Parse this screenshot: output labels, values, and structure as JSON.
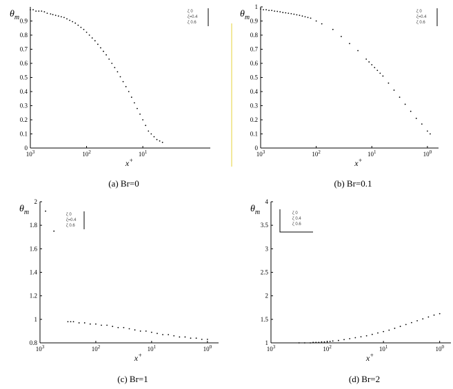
{
  "chart_data": [
    {
      "type": "scatter",
      "caption": "(a) Br=0",
      "ylabel_base": "θ",
      "ylabel_sub": "m",
      "xlabel_base": "x",
      "xlabel_sup": "+",
      "ylim": [
        0,
        1
      ],
      "yticks": [
        "0",
        "0.1",
        "0.2",
        "0.3",
        "0.4",
        "0.5",
        "0.6",
        "0.7",
        "0.8",
        "0.9"
      ],
      "xticks": [
        {
          "base": "10",
          "exp": "3"
        },
        {
          "base": "10",
          "exp": "2"
        },
        {
          "base": "10",
          "exp": "1"
        }
      ],
      "legend": [
        "ζ 0",
        "ζ=0.4",
        "ζ 0.6"
      ],
      "legend_pos": "top-right",
      "x": [
        0.0,
        0.05,
        0.1,
        0.15,
        0.2,
        0.25,
        0.3,
        0.36,
        0.4,
        0.45,
        0.5,
        0.55,
        0.6,
        0.65,
        0.7,
        0.75,
        0.8,
        0.85,
        0.9,
        0.95,
        1.0,
        1.05,
        1.1,
        1.15,
        1.2,
        1.25,
        1.3,
        1.35,
        1.4,
        1.45,
        1.5,
        1.55,
        1.6,
        1.65,
        1.7,
        1.75,
        1.8,
        1.85,
        1.9,
        1.95,
        2.0,
        2.05,
        2.1,
        2.15,
        2.2,
        2.25,
        2.3,
        2.35
      ],
      "y": [
        0.98,
        0.98,
        0.97,
        0.97,
        0.97,
        0.965,
        0.955,
        0.95,
        0.945,
        0.94,
        0.935,
        0.93,
        0.925,
        0.915,
        0.905,
        0.895,
        0.885,
        0.87,
        0.855,
        0.84,
        0.82,
        0.8,
        0.78,
        0.76,
        0.735,
        0.71,
        0.685,
        0.66,
        0.63,
        0.6,
        0.57,
        0.54,
        0.505,
        0.47,
        0.435,
        0.4,
        0.36,
        0.32,
        0.28,
        0.24,
        0.2,
        0.16,
        0.12,
        0.1,
        0.08,
        0.06,
        0.05,
        0.04
      ]
    },
    {
      "type": "scatter",
      "caption": "(b) Br=0.1",
      "ylabel_base": "θ",
      "ylabel_sub": "m",
      "xlabel_base": "x",
      "xlabel_sup": "+",
      "ylim": [
        0,
        1
      ],
      "yticks": [
        "0",
        "0.1",
        "0.2",
        "0.3",
        "0.4",
        "0.5",
        "0.6",
        "0.7",
        "0.8",
        "0.9",
        "1"
      ],
      "xticks": [
        {
          "base": "10",
          "exp": "3"
        },
        {
          "base": "10",
          "exp": "2"
        },
        {
          "base": "10",
          "exp": "1"
        },
        {
          "base": "10",
          "exp": "0"
        }
      ],
      "legend": [
        "ζ 0",
        "ζ=0.4",
        "ζ 0.6"
      ],
      "legend_pos": "top-right",
      "x": [
        0.0,
        0.05,
        0.1,
        0.15,
        0.2,
        0.25,
        0.3,
        0.35,
        0.4,
        0.45,
        0.5,
        0.55,
        0.6,
        0.65,
        0.7,
        0.75,
        0.8,
        0.85,
        0.9,
        1.0,
        1.1,
        1.3,
        1.45,
        1.6,
        1.75,
        1.9,
        1.95,
        2.0,
        2.05,
        2.1,
        2.15,
        2.2,
        2.3,
        2.4,
        2.5,
        2.6,
        2.7,
        2.8,
        2.9,
        3.0,
        3.05
      ],
      "y": [
        0.985,
        0.98,
        0.98,
        0.975,
        0.975,
        0.97,
        0.968,
        0.965,
        0.96,
        0.958,
        0.955,
        0.952,
        0.948,
        0.944,
        0.94,
        0.935,
        0.93,
        0.925,
        0.92,
        0.9,
        0.88,
        0.84,
        0.79,
        0.74,
        0.69,
        0.63,
        0.61,
        0.59,
        0.57,
        0.55,
        0.53,
        0.51,
        0.46,
        0.41,
        0.36,
        0.31,
        0.26,
        0.21,
        0.17,
        0.12,
        0.1
      ]
    },
    {
      "type": "scatter",
      "caption": "(c) Br=1",
      "ylabel_base": "θ",
      "ylabel_sub": "m",
      "xlabel_base": "x",
      "xlabel_sup": "+",
      "ylim": [
        0.8,
        2
      ],
      "yticks": [
        "0.8",
        "1",
        "1.2",
        "1.4",
        "1.6",
        "1.8",
        "2"
      ],
      "xticks": [
        {
          "base": "10",
          "exp": "3"
        },
        {
          "base": "10",
          "exp": "2"
        },
        {
          "base": "10",
          "exp": "1"
        },
        {
          "base": "10",
          "exp": "0"
        }
      ],
      "legend": [
        "ζ 0",
        "ζ=0.4",
        "ζ 0.6"
      ],
      "legend_pos": "top-left",
      "x": [
        0.1,
        0.25,
        0.5,
        0.55,
        0.6,
        0.7,
        0.8,
        0.9,
        1.0,
        1.1,
        1.2,
        1.3,
        1.4,
        1.5,
        1.6,
        1.7,
        1.8,
        1.9,
        2.0,
        2.1,
        2.2,
        2.3,
        2.4,
        2.5,
        2.6,
        2.7,
        2.8,
        2.9,
        3.0
      ],
      "y": [
        1.92,
        1.75,
        0.98,
        0.98,
        0.98,
        0.97,
        0.97,
        0.96,
        0.96,
        0.95,
        0.95,
        0.94,
        0.93,
        0.93,
        0.92,
        0.91,
        0.9,
        0.9,
        0.89,
        0.88,
        0.87,
        0.87,
        0.86,
        0.85,
        0.85,
        0.84,
        0.84,
        0.83,
        0.83
      ]
    },
    {
      "type": "scatter",
      "caption": "(d) Br=2",
      "ylabel_base": "θ",
      "ylabel_sub": "m",
      "xlabel_base": "x",
      "xlabel_sup": "+",
      "ylim": [
        1,
        4
      ],
      "yticks": [
        "1",
        "1.5",
        "2",
        "2.5",
        "3",
        "3.5",
        "4"
      ],
      "xticks": [
        {
          "base": "10",
          "exp": "3"
        },
        {
          "base": "10",
          "exp": "2"
        },
        {
          "base": "10",
          "exp": "1"
        },
        {
          "base": "10",
          "exp": "0"
        }
      ],
      "legend": [
        "ζ 0",
        "ζ 0.4",
        "ζ 0.6"
      ],
      "legend_pos": "top-left",
      "x": [
        0.5,
        0.6,
        0.7,
        0.75,
        0.8,
        0.85,
        0.9,
        0.95,
        1.0,
        1.05,
        1.1,
        1.2,
        1.3,
        1.4,
        1.5,
        1.6,
        1.7,
        1.8,
        1.9,
        2.0,
        2.1,
        2.2,
        2.3,
        2.4,
        2.5,
        2.6,
        2.7,
        2.8,
        2.9,
        3.0
      ],
      "y": [
        1.0,
        1.0,
        1.0,
        1.01,
        1.01,
        1.01,
        1.02,
        1.02,
        1.03,
        1.03,
        1.04,
        1.05,
        1.07,
        1.09,
        1.11,
        1.13,
        1.15,
        1.18,
        1.21,
        1.24,
        1.27,
        1.31,
        1.35,
        1.39,
        1.43,
        1.47,
        1.51,
        1.55,
        1.59,
        1.62
      ]
    }
  ]
}
